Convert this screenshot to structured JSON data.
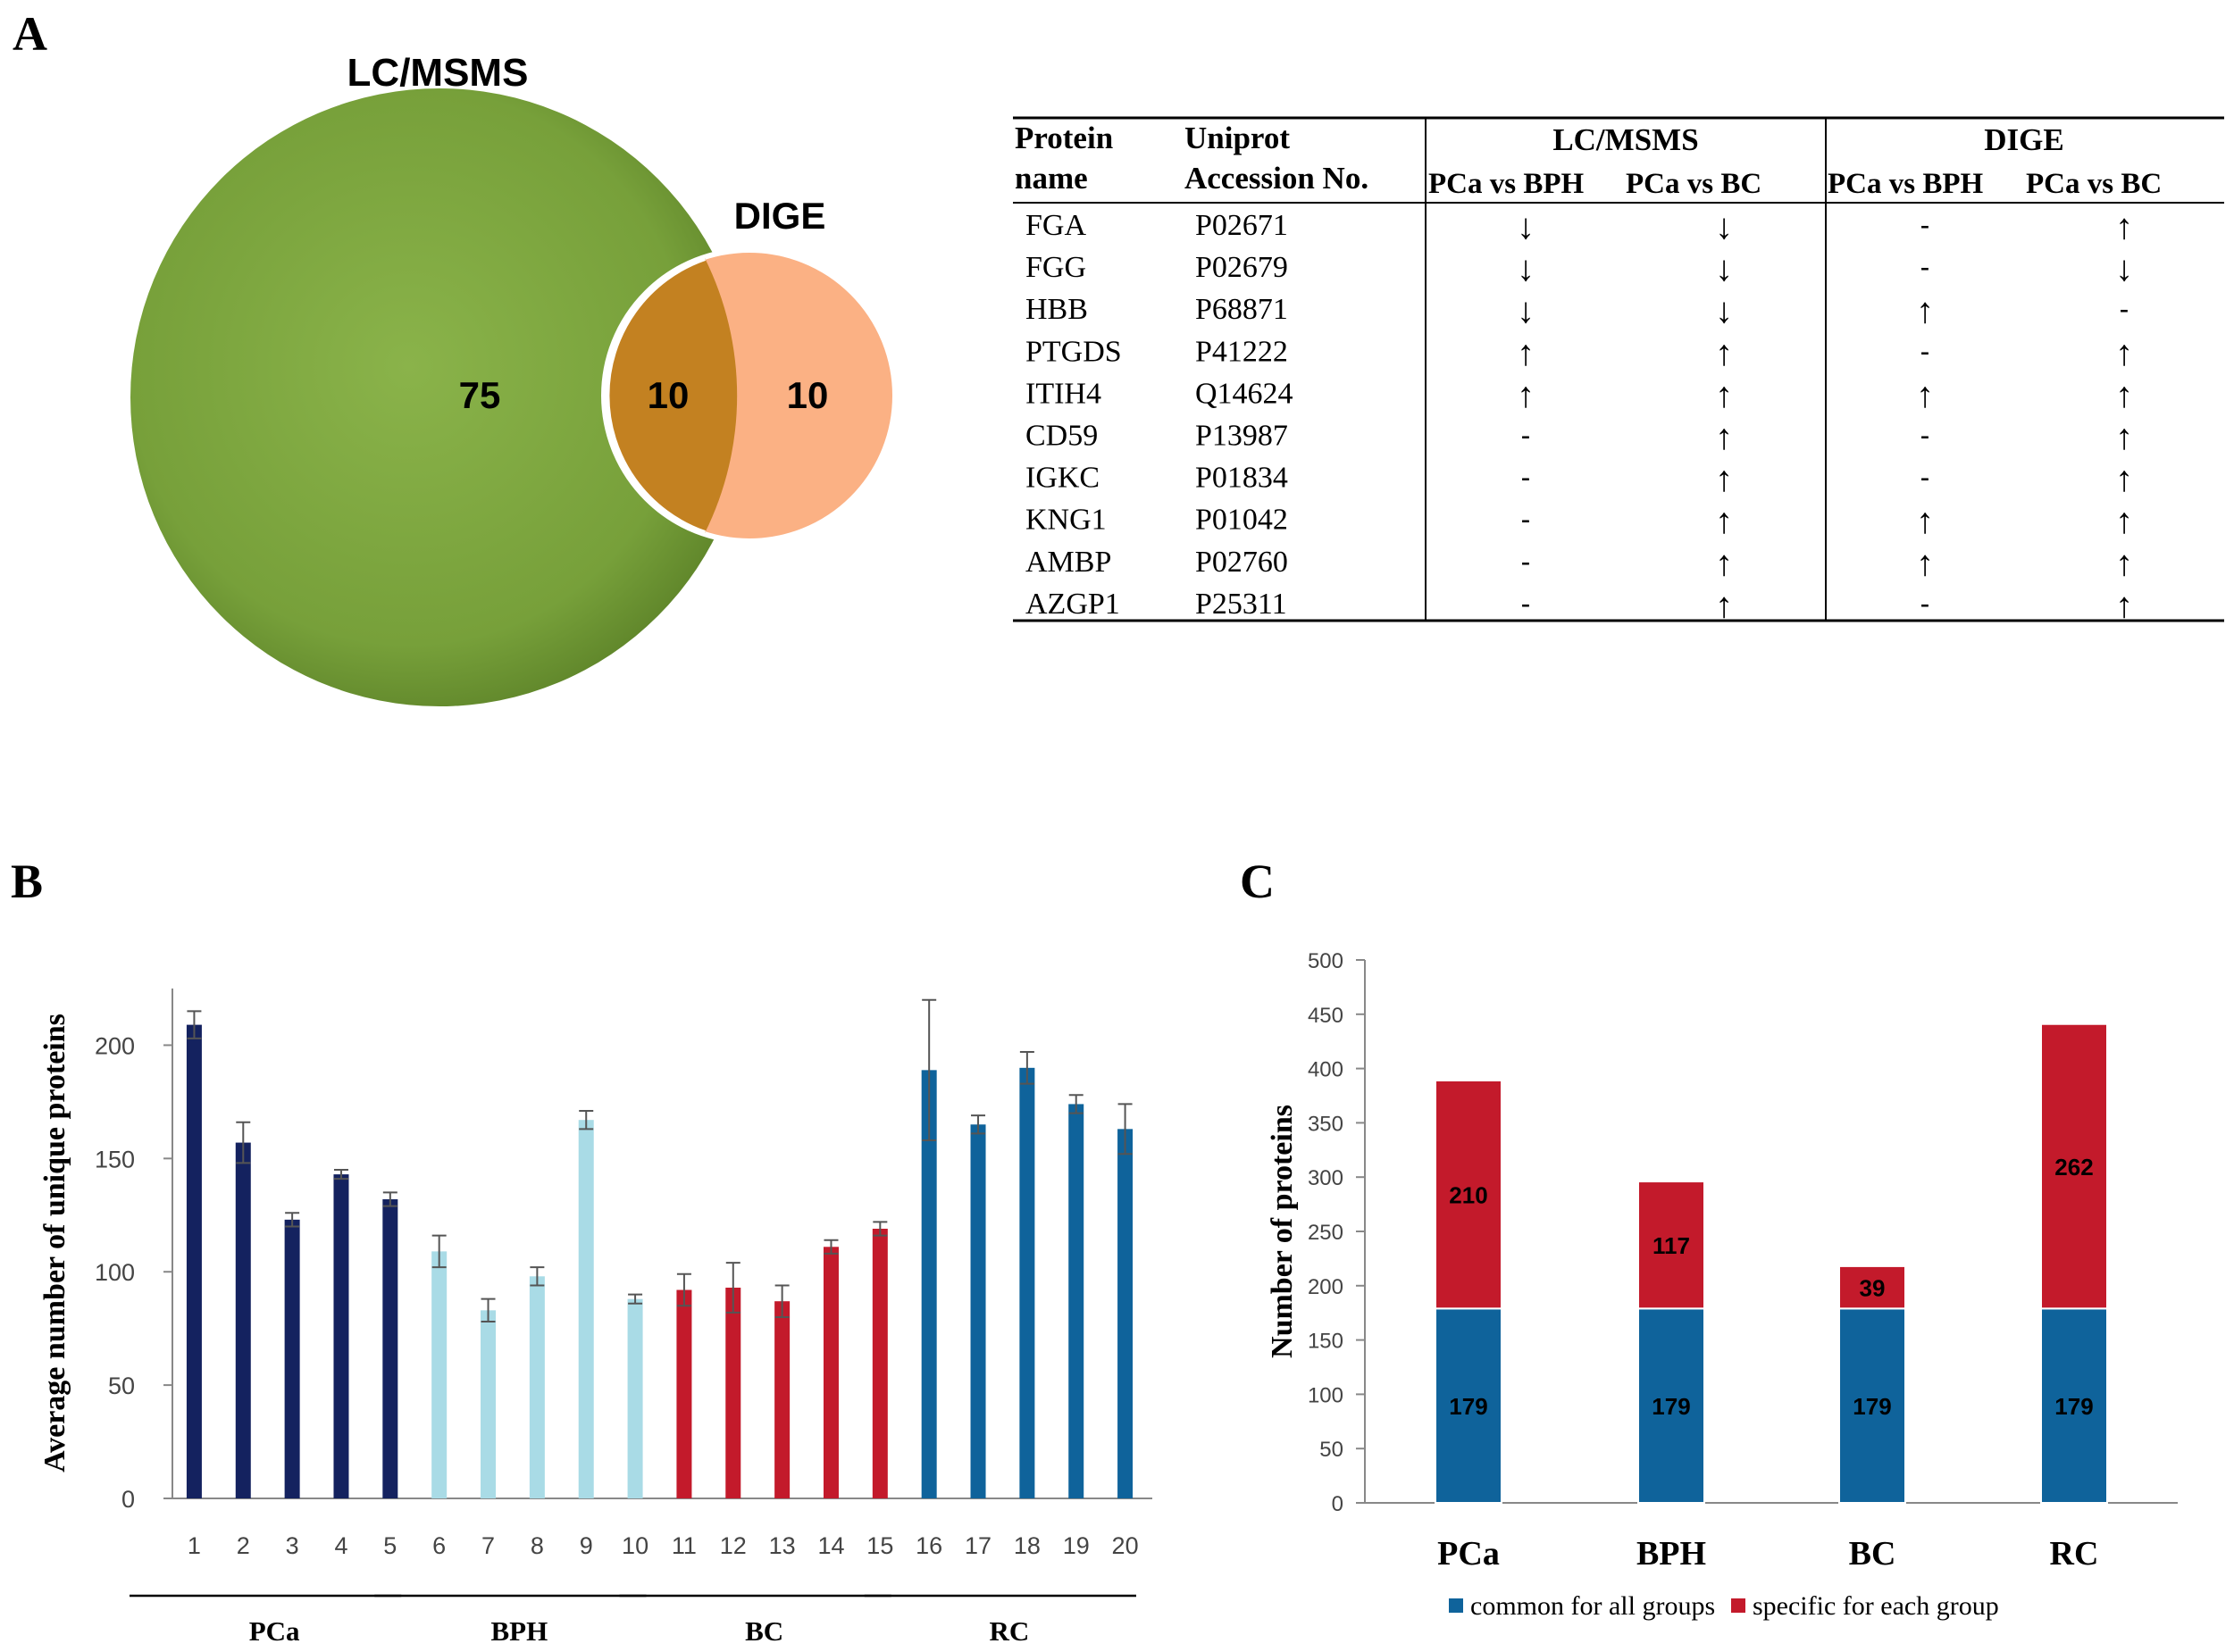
{
  "panels": {
    "a": "A",
    "b": "B",
    "c": "C"
  },
  "venn": {
    "left_label": "LC/MSMS",
    "right_label": "DIGE",
    "left_only": "75",
    "overlap": "10",
    "right_only": "10",
    "colors": {
      "left": "#77a03a",
      "right": "#fbb184",
      "overlap": "#c07e1b"
    }
  },
  "table": {
    "col_protein": [
      "Protein",
      "name"
    ],
    "col_uniprot": [
      "Uniprot",
      "Accession No."
    ],
    "group_lc": "LC/MSMS",
    "group_dige": "DIGE",
    "sub_cols": [
      "PCa vs BPH",
      "PCa vs BC",
      "PCa vs BPH",
      "PCa vs BC"
    ],
    "rows": [
      {
        "name": "FGA",
        "acc": "P02671",
        "cells": [
          "↓",
          "↓",
          "-",
          "↑"
        ]
      },
      {
        "name": "FGG",
        "acc": "P02679",
        "cells": [
          "↓",
          "↓",
          "-",
          "↓"
        ]
      },
      {
        "name": "HBB",
        "acc": "P68871",
        "cells": [
          "↓",
          "↓",
          "↑",
          "-"
        ]
      },
      {
        "name": "PTGDS",
        "acc": "P41222",
        "cells": [
          "↑",
          "↑",
          "-",
          "↑"
        ]
      },
      {
        "name": "ITIH4",
        "acc": "Q14624",
        "cells": [
          "↑",
          "↑",
          "↑",
          "↑"
        ]
      },
      {
        "name": "CD59",
        "acc": "P13987",
        "cells": [
          "-",
          "↑",
          "-",
          "↑"
        ]
      },
      {
        "name": "IGKC",
        "acc": "P01834",
        "cells": [
          "-",
          "↑",
          "-",
          "↑"
        ]
      },
      {
        "name": "KNG1",
        "acc": "P01042",
        "cells": [
          "-",
          "↑",
          "↑",
          "↑"
        ]
      },
      {
        "name": "AMBP",
        "acc": "P02760",
        "cells": [
          "-",
          "↑",
          "↑",
          "↑"
        ]
      },
      {
        "name": "AZGP1",
        "acc": "P25311",
        "cells": [
          "-",
          "↑",
          "-",
          "↑"
        ]
      }
    ]
  },
  "chart_data": [
    {
      "type": "bar",
      "ylabel": "Average number of unique proteins",
      "ylim": [
        0,
        225
      ],
      "yticks": [
        0,
        50,
        100,
        150,
        200
      ],
      "categories": [
        "1",
        "2",
        "3",
        "4",
        "5",
        "6",
        "7",
        "8",
        "9",
        "10",
        "11",
        "12",
        "13",
        "14",
        "15",
        "16",
        "17",
        "18",
        "19",
        "20"
      ],
      "values": [
        209,
        157,
        123,
        143,
        132,
        109,
        83,
        98,
        167,
        88,
        92,
        93,
        87,
        111,
        119,
        189,
        165,
        190,
        174,
        163
      ],
      "errors": [
        6,
        9,
        3,
        2,
        3,
        7,
        5,
        4,
        4,
        2,
        7,
        11,
        7,
        3,
        3,
        31,
        4,
        7,
        4,
        11
      ],
      "group_of_bar": [
        "PCa",
        "PCa",
        "PCa",
        "PCa",
        "PCa",
        "BPH",
        "BPH",
        "BPH",
        "BPH",
        "BPH",
        "BC",
        "BC",
        "BC",
        "BC",
        "BC",
        "RC",
        "RC",
        "RC",
        "RC",
        "RC"
      ],
      "groups": [
        "PCa",
        "BPH",
        "BC",
        "RC"
      ],
      "group_colors": {
        "PCa": "#14225f",
        "BPH": "#a9dbe6",
        "BC": "#c31a2b",
        "RC": "#0f639b"
      }
    },
    {
      "type": "bar",
      "stacked": true,
      "ylabel": "Number of proteins",
      "ylim": [
        0,
        500
      ],
      "yticks": [
        0,
        50,
        100,
        150,
        200,
        250,
        300,
        350,
        400,
        450,
        500
      ],
      "categories": [
        "PCa",
        "BPH",
        "BC",
        "RC"
      ],
      "series": [
        {
          "name": "common for all groups",
          "values": [
            179,
            179,
            179,
            179
          ],
          "color": "#0f639b"
        },
        {
          "name": "specific for each group",
          "values": [
            210,
            117,
            39,
            262
          ],
          "color": "#c31a2b"
        }
      ],
      "legend": "bottom"
    }
  ]
}
